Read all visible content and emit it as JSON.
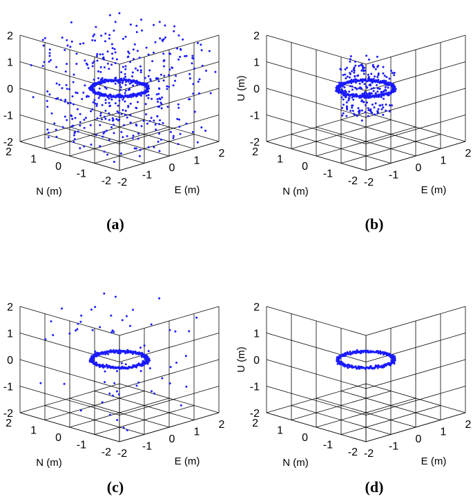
{
  "figure": {
    "panels": [
      {
        "caption": "(a)"
      },
      {
        "caption": "(b)"
      },
      {
        "caption": "(c)"
      },
      {
        "caption": "(d)"
      }
    ]
  },
  "colors": {
    "points": "#1a1aff",
    "grid": "#000000"
  },
  "chart_data": [
    {
      "type": "scatter",
      "projection": "3d",
      "xlabel": "E (m)",
      "ylabel": "N (m)",
      "zlabel": "U (m)",
      "xlim": [
        -2,
        2
      ],
      "ylim": [
        -2,
        2
      ],
      "zlim": [
        -2,
        2
      ],
      "xticks": [
        "-2",
        "-1",
        "0",
        "1",
        "2"
      ],
      "yticks": [
        "-2",
        "-1",
        "0",
        "1",
        "2"
      ],
      "zticks": [
        "-2",
        "-1",
        "0",
        "1",
        "2"
      ],
      "grid": true,
      "series": [
        {
          "values": {
            "ring_radius": 0.8,
            "ring_height": 0,
            "ring_points": 400,
            "scattered_points": 420,
            "scatter_extent": 2
          }
        }
      ]
    },
    {
      "type": "scatter",
      "projection": "3d",
      "xlabel": "E (m)",
      "ylabel": "N (m)",
      "zlabel": "U (m)",
      "xlim": [
        -2,
        2
      ],
      "ylim": [
        -2,
        2
      ],
      "zlim": [
        -2,
        2
      ],
      "xticks": [
        "-2",
        "-1",
        "0",
        "1",
        "2"
      ],
      "yticks": [
        "-2",
        "-1",
        "0",
        "1",
        "2"
      ],
      "zticks": [
        "-2",
        "-1",
        "0",
        "1",
        "2"
      ],
      "grid": true,
      "series": [
        {
          "values": {
            "ring_radius": 0.8,
            "ring_height": 0,
            "ring_points": 400,
            "scattered_points": 210,
            "scatter_extent": 1
          }
        }
      ]
    },
    {
      "type": "scatter",
      "projection": "3d",
      "xlabel": "E (m)",
      "ylabel": "N (m)",
      "zlabel": "U (m)",
      "xlim": [
        -2,
        2
      ],
      "ylim": [
        -2,
        2
      ],
      "zlim": [
        -2,
        2
      ],
      "xticks": [
        "-2",
        "-1",
        "0",
        "1",
        "2"
      ],
      "yticks": [
        "-2",
        "-1",
        "0",
        "1",
        "2"
      ],
      "zticks": [
        "-2",
        "-1",
        "0",
        "1",
        "2"
      ],
      "grid": true,
      "series": [
        {
          "values": {
            "ring_radius": 0.8,
            "ring_height": 0,
            "ring_points": 400,
            "scattered_points": 70,
            "scatter_extent": 2
          }
        }
      ]
    },
    {
      "type": "scatter",
      "projection": "3d",
      "xlabel": "E (m)",
      "ylabel": "N (m)",
      "zlabel": "U (m)",
      "xlim": [
        -2,
        2
      ],
      "ylim": [
        -2,
        2
      ],
      "zlim": [
        -2,
        2
      ],
      "xticks": [
        "-2",
        "-1",
        "0",
        "1",
        "2"
      ],
      "yticks": [
        "-2",
        "-1",
        "0",
        "1",
        "2"
      ],
      "zticks": [
        "-2",
        "-1",
        "0",
        "1",
        "2"
      ],
      "grid": true,
      "series": [
        {
          "values": {
            "ring_radius": 0.8,
            "ring_height": 0,
            "ring_points": 400,
            "scattered_points": 0,
            "scatter_extent": 2
          }
        }
      ]
    }
  ]
}
